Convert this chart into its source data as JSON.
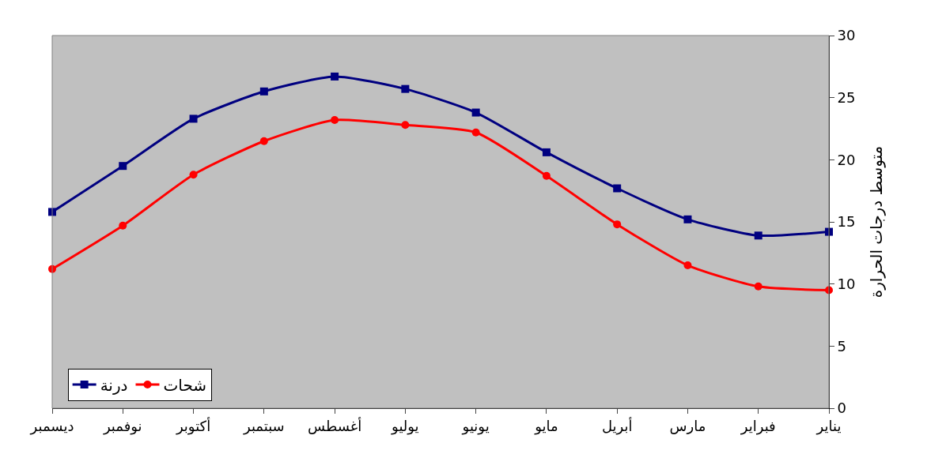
{
  "chart_data": {
    "type": "line",
    "ylabel": "متوسط درجات الحرارة",
    "categories": [
      "ديسمبر",
      "نوفمبر",
      "أكتوبر",
      "سبتمبر",
      "أغسطس",
      "يوليو",
      "يونيو",
      "مايو",
      "أبريل",
      "مارس",
      "فبراير",
      "يناير"
    ],
    "series": [
      {
        "name": "شحات",
        "color": "#ff0000",
        "marker": "circle",
        "values": [
          11.2,
          14.7,
          18.8,
          21.5,
          23.2,
          22.8,
          22.2,
          18.7,
          14.8,
          11.5,
          9.8,
          9.5
        ]
      },
      {
        "name": "درنة",
        "color": "#000080",
        "marker": "square",
        "values": [
          15.8,
          19.5,
          23.3,
          25.5,
          26.7,
          25.7,
          23.8,
          20.6,
          17.7,
          15.2,
          13.9,
          14.2
        ]
      }
    ],
    "ylim": [
      0,
      30
    ],
    "yticks": [
      0,
      5,
      10,
      15,
      20,
      25,
      30
    ],
    "grid": false,
    "legend": "bottom left",
    "line_style": "solid"
  }
}
